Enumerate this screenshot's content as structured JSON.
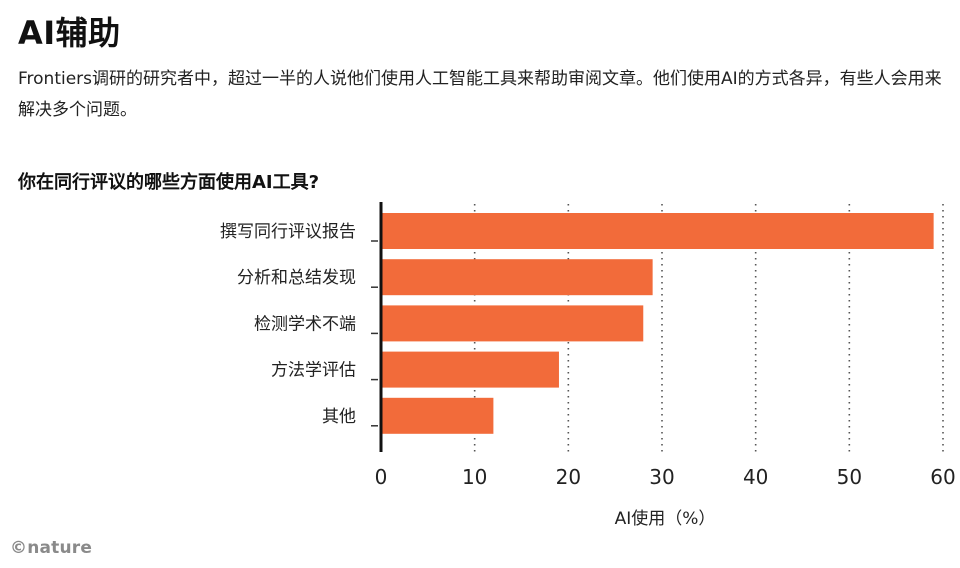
{
  "header": {
    "title": "AI辅助",
    "subtitle": "Frontiers调研的研究者中，超过一半的人说他们使用人工智能工具来帮助审阅文章。他们使用AI的方式各异，有些人会用来解决多个问题。"
  },
  "chart_data": {
    "type": "bar",
    "orientation": "horizontal",
    "title": "你在同行评议的哪些方面使用AI工具?",
    "categories": [
      "撰写同行评议报告",
      "分析和总结发现",
      "检测学术不端",
      "方法学评估",
      "其他"
    ],
    "values": [
      59,
      29,
      28,
      19,
      12
    ],
    "xlabel": "AI使用（%）",
    "xlim": [
      0,
      60
    ],
    "xticks": [
      0,
      10,
      20,
      30,
      40,
      50,
      60
    ],
    "grid": "vertical-dotted",
    "bar_color": "#f26b3a"
  },
  "footer": {
    "credit": "©nature"
  }
}
